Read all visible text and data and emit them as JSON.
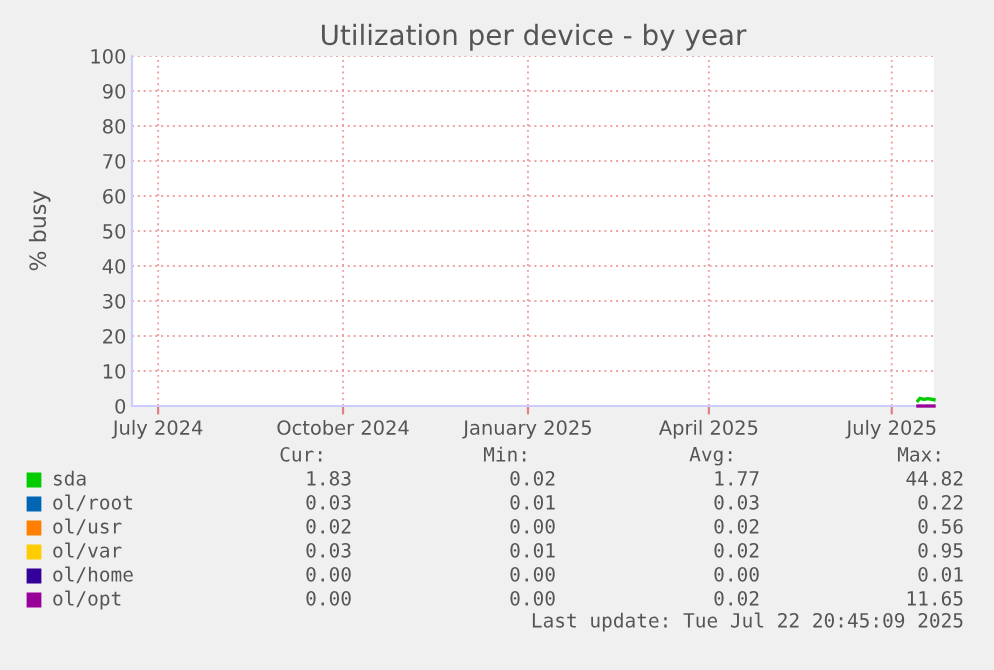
{
  "chart_data": {
    "type": "line",
    "title": "Utilization per device - by year",
    "ylabel": "% busy",
    "xlim": [
      "2024-06-18",
      "2025-07-22"
    ],
    "xticks": [
      {
        "value": "2024-07-01",
        "label": "July 2024"
      },
      {
        "value": "2024-10-01",
        "label": "October 2024"
      },
      {
        "value": "2025-01-01",
        "label": "January 2025"
      },
      {
        "value": "2025-04-01",
        "label": "April 2025"
      },
      {
        "value": "2025-07-01",
        "label": "July 2025"
      }
    ],
    "ylim": [
      0,
      100
    ],
    "yticks": [
      0,
      10,
      20,
      30,
      40,
      50,
      60,
      70,
      80,
      90,
      100
    ],
    "grid": true,
    "legend": "bottom",
    "series": [
      {
        "name": "sda",
        "color": "#00cc00",
        "x": [
          "2025-07-14",
          "2025-07-15",
          "2025-07-17",
          "2025-07-19",
          "2025-07-22"
        ],
        "values": [
          1.5,
          2.2,
          1.9,
          2.1,
          1.8
        ]
      },
      {
        "name": "ol/root",
        "color": "#0066b3"
      },
      {
        "name": "ol/usr",
        "color": "#ff8000"
      },
      {
        "name": "ol/var",
        "color": "#ffcc00"
      },
      {
        "name": "ol/home",
        "color": "#330099"
      },
      {
        "name": "ol/opt",
        "color": "#990099",
        "x": [
          "2025-07-14",
          "2025-07-22"
        ],
        "values": [
          0,
          0
        ]
      }
    ],
    "annotations": [
      "Cur:",
      "Min:",
      "Avg:",
      "Max:",
      "1.83",
      "0.02",
      "1.77",
      "44.82",
      "0.03",
      "0.01",
      "0.03",
      "0.22",
      "0.02",
      "0.00",
      "0.02",
      "0.56",
      "0.03",
      "0.01",
      "0.02",
      "0.95",
      "0.00",
      "0.00",
      "0.00",
      "0.01",
      "0.00",
      "0.00",
      "0.02",
      "11.65",
      "Last update: Tue Jul 22 20:45:09 2025"
    ]
  }
}
